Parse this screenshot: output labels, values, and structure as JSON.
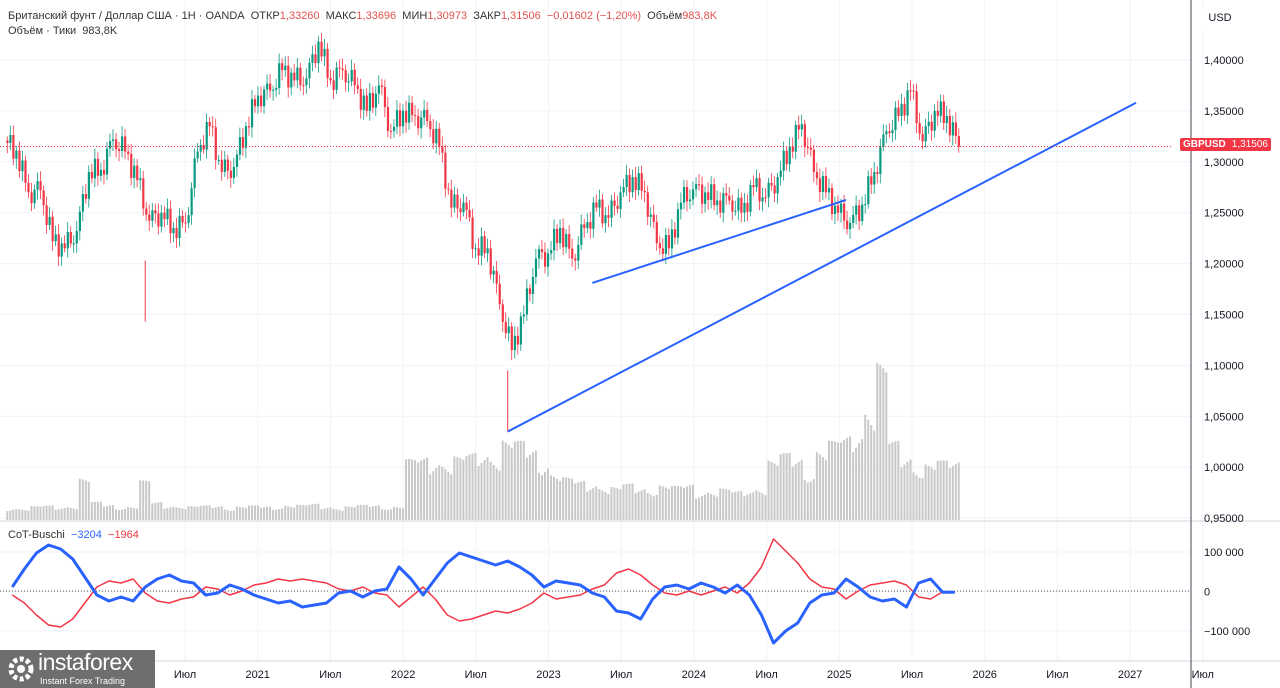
{
  "header": {
    "symbol_title": "Британский фунт / Доллар США · 1Н · OANDA",
    "open_label": "ОТКР",
    "open": "1,33260",
    "high_label": "МАКС",
    "high": "1,33696",
    "low_label": "МИН",
    "low": "1,30973",
    "close_label": "ЗАКР",
    "close": "1,31506",
    "change": "−0,01602 (−1,20%)",
    "volume_label": "Объём",
    "volume": "983,8K",
    "volume_indicator_label": "Объём · Тики",
    "volume_indicator_value": "983,8K"
  },
  "price_axis": {
    "currency": "USD",
    "ticks": [
      "1,40000",
      "1,35000",
      "1,30000",
      "1,25000",
      "1,20000",
      "1,15000",
      "1,10000",
      "1,05000",
      "1,00000",
      "0,95000"
    ],
    "last_price_symbol": "GBPUSD",
    "last_price": "1,31506"
  },
  "cot": {
    "name": "CoT-Buschi",
    "blue_value": "−3204",
    "red_value": "−1964",
    "ticks": [
      "100 000",
      "0",
      "−100 000"
    ]
  },
  "time_axis": {
    "ticks": [
      "Июл",
      "2021",
      "Июл",
      "2022",
      "Июл",
      "2023",
      "Июл",
      "2024",
      "Июл",
      "2025",
      "Июл",
      "2026",
      "Июл",
      "2027",
      "Июл"
    ]
  },
  "logo": {
    "name": "instaforex",
    "tagline": "Instant Forex Trading"
  },
  "colors": {
    "up": "#089981",
    "down": "#f23645",
    "cot_blue": "#2962ff",
    "cot_red": "#f23645",
    "trendline": "#2962ff",
    "volume": "#c8c8c8"
  },
  "chart_data": [
    {
      "type": "candlestick",
      "title": "Британский фунт / Доллар США · 1Н · OANDA",
      "x_start": "2019-04",
      "x_step": "month",
      "ylim": [
        0.95,
        1.42
      ],
      "grid": true,
      "monthly_close": [
        1.311,
        1.27,
        1.272,
        1.222,
        1.215,
        1.232,
        1.29,
        1.292,
        1.322,
        1.31,
        1.282,
        1.242,
        1.25,
        1.235,
        1.24,
        1.31,
        1.335,
        1.29,
        1.295,
        1.335,
        1.365,
        1.37,
        1.39,
        1.38,
        1.382,
        1.418,
        1.38,
        1.39,
        1.375,
        1.35,
        1.375,
        1.33,
        1.35,
        1.345,
        1.34,
        1.315,
        1.255,
        1.26,
        1.215,
        1.215,
        1.16,
        1.115,
        1.15,
        1.205,
        1.21,
        1.235,
        1.205,
        1.235,
        1.255,
        1.245,
        1.27,
        1.285,
        1.27,
        1.22,
        1.215,
        1.26,
        1.273,
        1.27,
        1.262,
        1.262,
        1.25,
        1.275,
        1.265,
        1.285,
        1.315,
        1.337,
        1.29,
        1.27,
        1.25,
        1.24,
        1.258,
        1.29,
        1.33,
        1.345,
        1.37,
        1.32,
        1.35,
        1.345,
        1.315
      ],
      "notable_lows": [
        {
          "date": "2020-03",
          "price": 1.143
        },
        {
          "date": "2022-09",
          "price": 1.035
        }
      ],
      "last_price": 1.31506,
      "trendlines": [
        {
          "from": {
            "date": "2022-09",
            "price": 1.035
          },
          "to": {
            "date": "2027-01",
            "price": 1.358
          }
        },
        {
          "from": {
            "date": "2023-04",
            "price": 1.181
          },
          "to": {
            "date": "2025-01",
            "price": 1.2625
          }
        }
      ]
    },
    {
      "type": "bar",
      "title": "Объём · Тики",
      "x_start": "2019-04",
      "x_step": "month",
      "unit": "K",
      "values": [
        220,
        200,
        230,
        240,
        220,
        260,
        700,
        300,
        260,
        240,
        230,
        650,
        300,
        260,
        240,
        230,
        240,
        250,
        220,
        230,
        240,
        230,
        240,
        260,
        250,
        270,
        240,
        220,
        230,
        250,
        260,
        240,
        230,
        1000,
        1050,
        1100,
        1000,
        1050,
        1100,
        1150,
        1200,
        1350,
        1300,
        1200,
        1100,
        800,
        700,
        650,
        650,
        600,
        550,
        600,
        550,
        580,
        600,
        560,
        600,
        520,
        500,
        520,
        480,
        520,
        600,
        1000,
        1100,
        1050,
        900,
        1200,
        1300,
        1400,
        1600,
        2000,
        2600,
        1300,
        1100,
        1000,
        950,
        980,
        983.8
      ]
    },
    {
      "type": "line",
      "title": "CoT-Buschi",
      "x_start": "2019-04",
      "x_step": "month",
      "ylim": [
        -150000,
        150000
      ],
      "ticks": [
        100000,
        0,
        -100000
      ],
      "series": [
        {
          "color": "blue",
          "values": [
            10000,
            55000,
            95000,
            115000,
            105000,
            80000,
            35000,
            -10000,
            -25000,
            -15000,
            -25000,
            10000,
            30000,
            40000,
            25000,
            20000,
            -10000,
            -5000,
            15000,
            5000,
            -10000,
            -20000,
            -30000,
            -25000,
            -40000,
            -35000,
            -30000,
            -5000,
            0,
            -15000,
            0,
            5000,
            60000,
            30000,
            -10000,
            30000,
            70000,
            95000,
            85000,
            75000,
            65000,
            75000,
            60000,
            40000,
            10000,
            25000,
            20000,
            15000,
            -5000,
            -15000,
            -50000,
            -55000,
            -70000,
            -20000,
            10000,
            15000,
            5000,
            20000,
            10000,
            -5000,
            15000,
            -10000,
            -60000,
            -130000,
            -100000,
            -80000,
            -30000,
            -10000,
            -5000,
            30000,
            10000,
            -15000,
            -25000,
            -20000,
            -40000,
            20000,
            30000,
            -3204,
            -3204
          ]
        },
        {
          "color": "red",
          "values": [
            -10000,
            -30000,
            -60000,
            -85000,
            -90000,
            -70000,
            -30000,
            10000,
            25000,
            20000,
            30000,
            -5000,
            -25000,
            -30000,
            -20000,
            -15000,
            10000,
            5000,
            -10000,
            0,
            15000,
            20000,
            30000,
            25000,
            30000,
            25000,
            20000,
            5000,
            0,
            10000,
            -5000,
            -10000,
            -40000,
            -15000,
            10000,
            -20000,
            -60000,
            -75000,
            -70000,
            -60000,
            -50000,
            -55000,
            -45000,
            -30000,
            -5000,
            -20000,
            -15000,
            -10000,
            5000,
            15000,
            45000,
            55000,
            40000,
            15000,
            -5000,
            -10000,
            0,
            -10000,
            0,
            10000,
            -5000,
            20000,
            60000,
            130000,
            100000,
            70000,
            30000,
            10000,
            5000,
            -20000,
            0,
            15000,
            20000,
            25000,
            15000,
            -15000,
            -20000,
            -1964,
            -1964
          ]
        }
      ]
    }
  ]
}
